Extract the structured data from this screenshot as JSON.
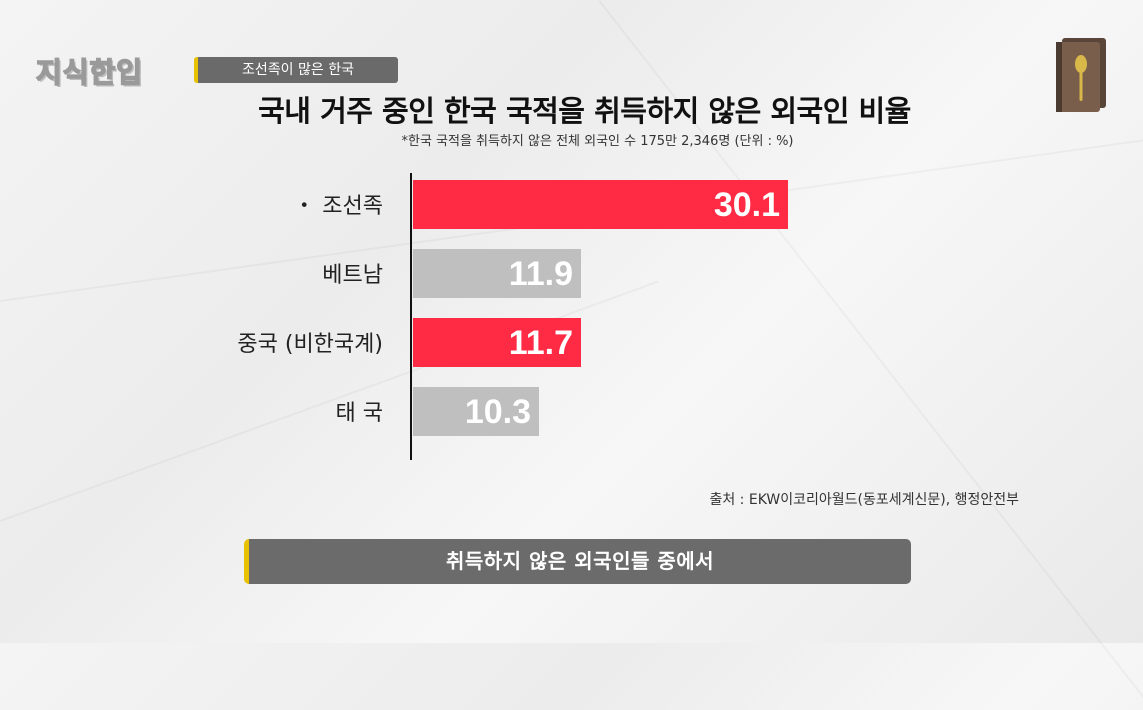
{
  "header": {
    "logo_text": "지식한입",
    "topic_tag": "조선족이 많은 한국"
  },
  "chart_data": {
    "type": "bar",
    "orientation": "horizontal",
    "title": "국내 거주 중인 한국 국적을 취득하지 않은 외국인 비율",
    "subtitle": "*한국 국적을 취득하지 않은 전체 외국인 수 175만 2,346명 (단위 : %)",
    "categories": [
      "・ 조선족",
      "베트남",
      "중국 (비한국계)",
      "태 국"
    ],
    "values": [
      30.1,
      11.9,
      11.7,
      10.3
    ],
    "value_labels": [
      "30.1",
      "11.9",
      "11.7",
      "10.3"
    ],
    "bar_colors": [
      "#ff2b45",
      "#bfbfbf",
      "#ff2b45",
      "#bfbfbf"
    ],
    "xlim": [
      0,
      30.1
    ],
    "grid": false
  },
  "source": "출처 : EKW이코리아월드(동포세계신문), 행정안전부",
  "caption": "취득하지 않은 외국인들 중에서",
  "colors": {
    "accent_red": "#ff2b45",
    "bar_gray": "#bfbfbf",
    "tag_gray": "#6a6a6a",
    "tag_yellow": "#e8c200"
  }
}
